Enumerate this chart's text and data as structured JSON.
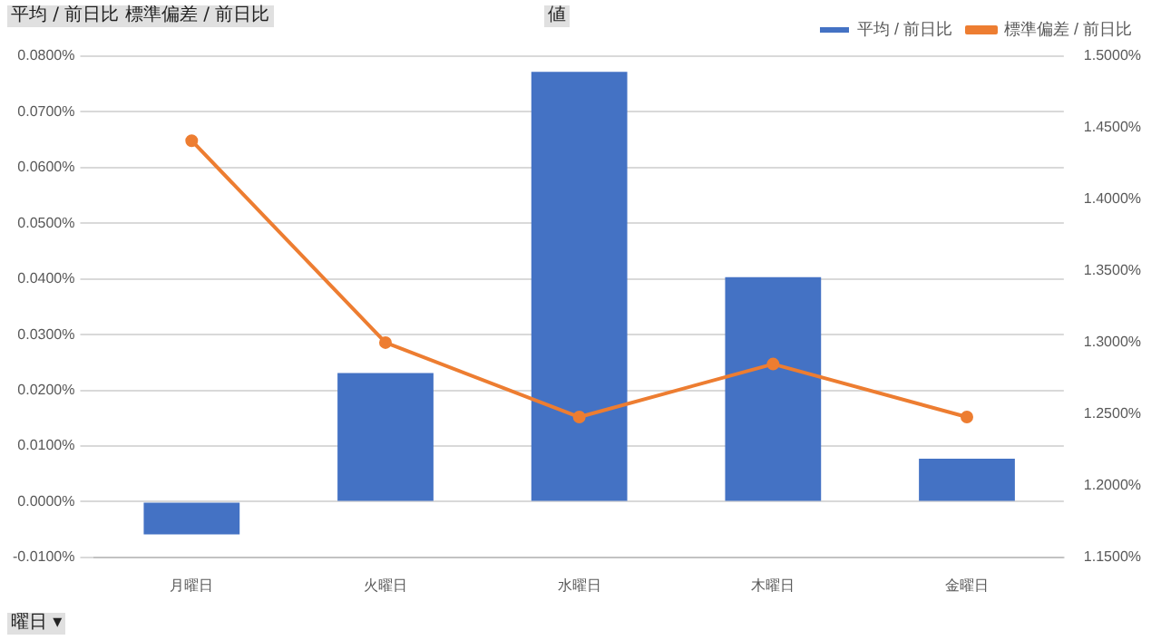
{
  "chart_data": {
    "type": "bar",
    "categories": [
      "月曜日",
      "火曜日",
      "水曜日",
      "木曜日",
      "金曜日"
    ],
    "series": [
      {
        "name": "平均 / 前日比",
        "color": "#4472c4",
        "values": [
          -0.0059,
          0.0231,
          0.0772,
          0.0403,
          0.0077
        ]
      },
      {
        "name": "標準偏差 / 前日比",
        "type": "line",
        "axis": "y2",
        "color": "#ed7d31",
        "values": [
          1.441,
          1.3,
          1.248,
          1.285,
          1.248
        ]
      }
    ],
    "ylim": [
      -0.01,
      0.08
    ],
    "yticks": [
      {
        "value": -0.01,
        "label": "-0.0100%"
      },
      {
        "value": 0,
        "label": "0.0000%"
      },
      {
        "value": 0.01,
        "label": "0.0100%"
      },
      {
        "value": 0.02,
        "label": "0.0200%"
      },
      {
        "value": 0.03,
        "label": "0.0300%"
      },
      {
        "value": 0.04,
        "label": "0.0400%"
      },
      {
        "value": 0.05,
        "label": "0.0500%"
      },
      {
        "value": 0.06,
        "label": "0.0600%"
      },
      {
        "value": 0.07,
        "label": "0.0700%"
      },
      {
        "value": 0.08,
        "label": "0.0800%"
      }
    ],
    "y2lim": [
      1.15,
      1.5
    ],
    "y2ticks": [
      {
        "value": 1.15,
        "label": "1.1500%"
      },
      {
        "value": 1.2,
        "label": "1.2000%"
      },
      {
        "value": 1.25,
        "label": "1.2500%"
      },
      {
        "value": 1.3,
        "label": "1.3000%"
      },
      {
        "value": 1.35,
        "label": "1.3500%"
      },
      {
        "value": 1.4,
        "label": "1.4000%"
      },
      {
        "value": 1.45,
        "label": "1.4500%"
      },
      {
        "value": 1.5,
        "label": "1.5000%"
      }
    ],
    "grid": "y",
    "legend": "top right",
    "marker": "circle",
    "line_style": "solid",
    "annotations": [
      "平均 / 前日比 標準偏差 / 前日比",
      "値",
      "曜日 ▾"
    ]
  }
}
